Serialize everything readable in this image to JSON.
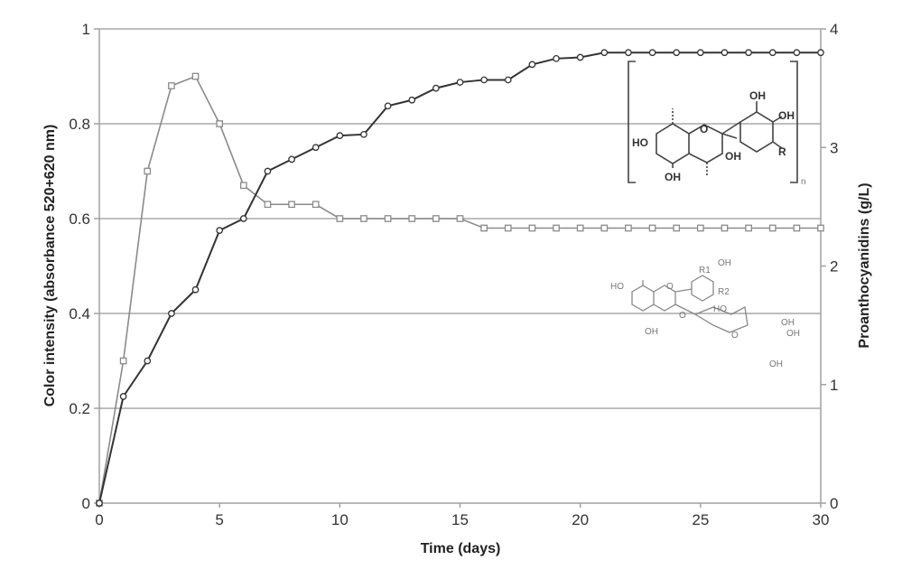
{
  "chart_data": {
    "type": "line",
    "title": "",
    "xlabel": "Time (days)",
    "ylabel": "Color intensity (absorbance 520+620 nm)",
    "y2label": "Proanthocyanidins (g/L)",
    "xlim": [
      0,
      30
    ],
    "ylim": [
      0,
      1
    ],
    "y2lim": [
      0,
      4
    ],
    "grid": true,
    "legend": "none",
    "x_ticks": [
      "0",
      "5",
      "10",
      "15",
      "20",
      "25",
      "30"
    ],
    "y_ticks": [
      "0",
      "0.2",
      "0.4",
      "0.6",
      "0.8",
      "1"
    ],
    "y2_ticks": [
      "0",
      "1",
      "2",
      "3",
      "4"
    ],
    "x": [
      0,
      1,
      2,
      3,
      4,
      5,
      6,
      7,
      8,
      9,
      10,
      11,
      12,
      13,
      14,
      15,
      16,
      17,
      18,
      19,
      20,
      21,
      22,
      23,
      24,
      25,
      26,
      27,
      28,
      29,
      30
    ],
    "series": [
      {
        "name": "Color intensity",
        "axis": "left",
        "marker": "square",
        "color": "#8a8a8a",
        "values": [
          0,
          0.3,
          0.7,
          0.88,
          0.9,
          0.8,
          0.67,
          0.63,
          0.63,
          0.63,
          0.6,
          0.6,
          0.6,
          0.6,
          0.6,
          0.6,
          0.58,
          0.58,
          0.58,
          0.58,
          0.58,
          0.58,
          0.58,
          0.58,
          0.58,
          0.58,
          0.58,
          0.58,
          0.58,
          0.58,
          0.58
        ]
      },
      {
        "name": "Proanthocyanidins",
        "axis": "right",
        "marker": "circle",
        "color": "#333333",
        "values": [
          0,
          0.9,
          1.2,
          1.6,
          1.8,
          2.3,
          2.4,
          2.8,
          2.9,
          3.0,
          3.1,
          3.11,
          3.35,
          3.4,
          3.5,
          3.55,
          3.57,
          3.57,
          3.7,
          3.75,
          3.76,
          3.8,
          3.8,
          3.8,
          3.8,
          3.8,
          3.8,
          3.8,
          3.8,
          3.8,
          3.8
        ]
      }
    ],
    "annotations": [
      {
        "type": "structure",
        "name": "proanthocyanidin-polymer",
        "labels": [
          "OH",
          "OH",
          "HO",
          "R",
          "OH",
          "OH",
          "n"
        ]
      },
      {
        "type": "structure",
        "name": "anthocyanin-glucoside",
        "labels": [
          "R1",
          "OH",
          "R2",
          "HO",
          "OH",
          "HO",
          "OH",
          "OH",
          "OH"
        ]
      }
    ]
  },
  "labels": {
    "xlabel": "Time (days)",
    "ylabel": "Color intensity (absorbance 520+620 nm)",
    "y2label": "Proanthocyanidins (g/L)"
  }
}
